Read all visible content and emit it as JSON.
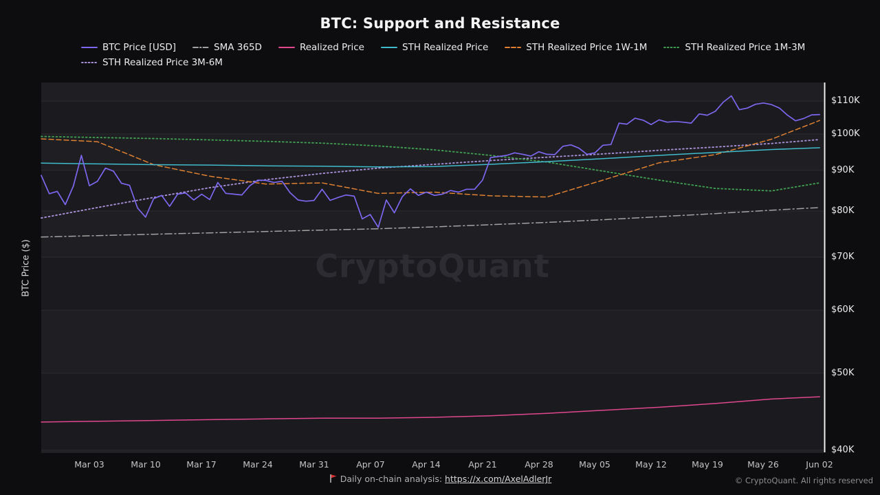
{
  "title": "BTC: Support and Resistance",
  "y_axis_label": "BTC Price ($)",
  "watermark": "CryptoQuant",
  "footer": {
    "analysis_text": "Daily on-chain analysis: ",
    "analysis_link": "https://x.com/AxelAdlerJr",
    "copyright": "© CryptoQuant. All rights reserved"
  },
  "colors": {
    "page_bg": "#0d0d10",
    "plot_bg": "#1a1a1f",
    "plot_band_alt": "#1e1e23",
    "gridline": "#2c2c31",
    "axis_line": "#f2f2f2",
    "watermark": "#2c2c32",
    "flag_red": "#e03131"
  },
  "chart_data": {
    "type": "line",
    "title": "BTC: Support and Resistance",
    "xlabel": "",
    "ylabel": "BTC Price ($)",
    "y_scale": "log",
    "y_unit": "thousand USD",
    "ylim": [
      39.75,
      116.1
    ],
    "x_domain": [
      0,
      97.5
    ],
    "x_domain_note": "day offset, day 0 = Feb 25, day 97 = Jun 02",
    "grid": "horizontal-only",
    "legend_position": "top-left",
    "x_tick_days": [
      6,
      13,
      20,
      27,
      34,
      41,
      48,
      55,
      62,
      69,
      76,
      83,
      90,
      97
    ],
    "x_tick_labels": [
      "Mar 03",
      "Mar 10",
      "Mar 17",
      "Mar 24",
      "Mar 31",
      "Apr 07",
      "Apr 14",
      "Apr 21",
      "Apr 28",
      "May 05",
      "May 12",
      "May 19",
      "May 26",
      "Jun 02"
    ],
    "y_ticks": [
      40,
      50,
      60,
      70,
      80,
      90,
      100,
      110
    ],
    "y_tick_labels": [
      "$40K",
      "$50K",
      "$60K",
      "$70K",
      "$80K",
      "$90K",
      "$100K",
      "$110K"
    ],
    "weekly_x": [
      0,
      7,
      14,
      21,
      28,
      35,
      42,
      49,
      56,
      63,
      70,
      77,
      84,
      91,
      97
    ],
    "series": [
      {
        "id": "btc",
        "name": "BTC Price [USD]",
        "color": "#7b68ee",
        "style": "solid",
        "x_note": "daily, index = day offset",
        "y": [
          88.7,
          84.1,
          84.7,
          81.5,
          86.0,
          94.0,
          86.1,
          87.2,
          90.6,
          89.8,
          86.7,
          86.2,
          80.7,
          78.6,
          82.9,
          83.7,
          81.1,
          84.0,
          84.3,
          82.6,
          84.0,
          82.7,
          86.9,
          84.2,
          84.0,
          83.8,
          86.1,
          87.5,
          87.4,
          86.9,
          87.2,
          84.4,
          82.6,
          82.3,
          82.5,
          85.2,
          82.5,
          83.2,
          83.8,
          83.5,
          78.2,
          79.2,
          76.3,
          82.6,
          79.6,
          83.4,
          85.3,
          83.7,
          84.5,
          83.7,
          84.0,
          84.9,
          84.5,
          85.2,
          85.2,
          87.5,
          93.4,
          93.7,
          94.0,
          94.7,
          94.3,
          93.8,
          95.0,
          94.3,
          94.2,
          96.5,
          96.9,
          96.0,
          94.3,
          94.7,
          96.8,
          97.0,
          103.2,
          102.9,
          104.7,
          104.1,
          102.8,
          104.2,
          103.5,
          103.7,
          103.5,
          103.2,
          106.0,
          105.6,
          106.8,
          109.7,
          111.7,
          107.3,
          107.8,
          109.0,
          109.4,
          108.9,
          107.8,
          105.6,
          103.9,
          104.6,
          105.7,
          105.8
        ]
      },
      {
        "id": "sma-365d",
        "name": "SMA 365D",
        "color": "#a3a3a3",
        "style": "dashdot",
        "x": [
          0,
          7,
          14,
          21,
          28,
          35,
          42,
          49,
          56,
          63,
          70,
          77,
          84,
          91,
          97
        ],
        "y": [
          74.2,
          74.5,
          74.8,
          75.1,
          75.4,
          75.7,
          76.0,
          76.4,
          76.9,
          77.4,
          78.0,
          78.7,
          79.4,
          80.2,
          80.8
        ]
      },
      {
        "id": "realized-price",
        "name": "Realized Price",
        "color": "#e2478d",
        "style": "solid",
        "x": [
          0,
          7,
          14,
          21,
          28,
          35,
          42,
          49,
          56,
          63,
          70,
          77,
          84,
          91,
          97
        ],
        "y": [
          43.4,
          43.5,
          43.6,
          43.7,
          43.8,
          43.9,
          43.9,
          44.0,
          44.2,
          44.5,
          44.9,
          45.3,
          45.8,
          46.4,
          46.7
        ]
      },
      {
        "id": "sth-realized-price",
        "name": "STH Realized Price",
        "color": "#41bccc",
        "style": "solid",
        "x": [
          0,
          7,
          14,
          21,
          28,
          35,
          42,
          49,
          56,
          63,
          70,
          77,
          84,
          91,
          97
        ],
        "y": [
          91.9,
          91.7,
          91.5,
          91.4,
          91.2,
          91.1,
          90.9,
          91.0,
          91.6,
          92.3,
          93.1,
          94.0,
          94.8,
          95.6,
          96.1
        ]
      },
      {
        "id": "sth-realized-price-1w-1m",
        "name": "STH Realized Price 1W-1M",
        "color": "#e08232",
        "style": "dashed",
        "x": [
          0,
          7,
          14,
          21,
          28,
          35,
          42,
          49,
          56,
          63,
          70,
          77,
          84,
          91,
          97
        ],
        "y": [
          98.6,
          97.8,
          91.5,
          88.5,
          86.5,
          86.8,
          84.2,
          84.5,
          83.6,
          83.3,
          87.5,
          92.0,
          94.2,
          98.5,
          104.0
        ]
      },
      {
        "id": "sth-realized-price-1m-3m",
        "name": "STH Realized Price 1M-3M",
        "color": "#3f9d50",
        "style": "dotted",
        "x": [
          0,
          7,
          14,
          21,
          28,
          35,
          42,
          49,
          56,
          63,
          70,
          77,
          84,
          91,
          97
        ],
        "y": [
          99.3,
          99.0,
          98.7,
          98.3,
          97.9,
          97.4,
          96.6,
          95.5,
          94.0,
          92.2,
          89.8,
          87.5,
          85.4,
          84.8,
          86.8
        ]
      },
      {
        "id": "sth-realized-price-3m-6m",
        "name": "STH Realized Price 3M-6M",
        "color": "#a78fd6",
        "style": "dotted",
        "x": [
          0,
          7,
          14,
          21,
          28,
          35,
          42,
          49,
          56,
          63,
          70,
          77,
          84,
          91,
          97
        ],
        "y": [
          78.4,
          80.8,
          83.2,
          85.6,
          87.6,
          89.2,
          90.6,
          91.6,
          92.6,
          93.5,
          94.4,
          95.4,
          96.3,
          97.3,
          98.4
        ]
      }
    ]
  }
}
